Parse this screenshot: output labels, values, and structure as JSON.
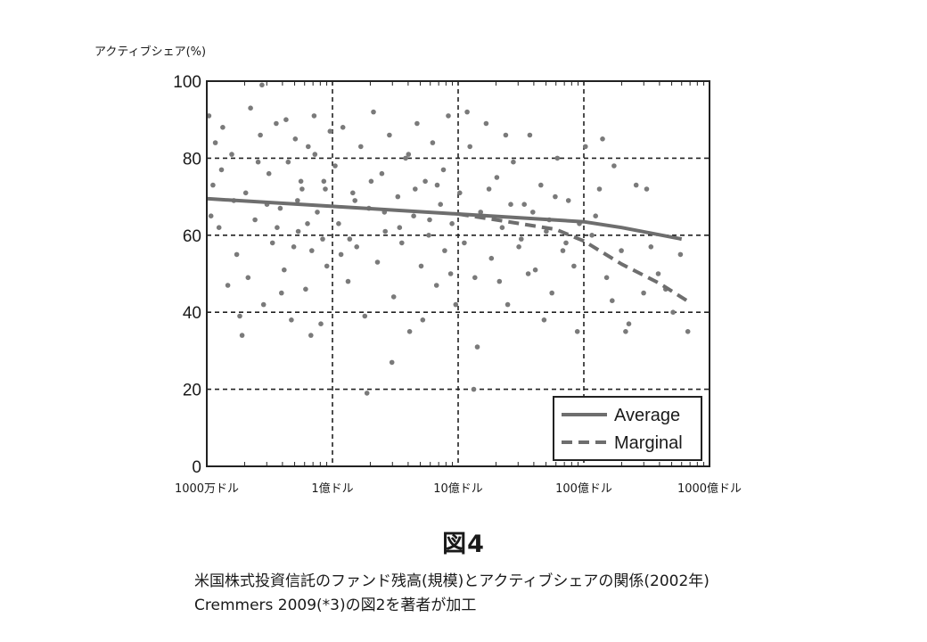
{
  "chart_data": {
    "type": "scatter",
    "ylabel": "アクティブシェア(%)",
    "xlabel": "",
    "x_scale": "log",
    "x_ticks": [
      {
        "value": 10000000,
        "label": "1000万ドル"
      },
      {
        "value": 100000000,
        "label": "1億ドル"
      },
      {
        "value": 1000000000,
        "label": "10億ドル"
      },
      {
        "value": 10000000000,
        "label": "100億ドル"
      },
      {
        "value": 100000000000,
        "label": "1000億ドル"
      }
    ],
    "y_ticks": [
      "0",
      "20",
      "40",
      "60",
      "80",
      "100"
    ],
    "xlim": [
      10000000,
      100000000000
    ],
    "ylim": [
      0,
      100
    ],
    "grid": true,
    "legend_position": "bottom-right",
    "point_color": "#7a7a7a",
    "series": [
      {
        "name": "Average",
        "style": "solid",
        "color": "#6e6e6e",
        "points": [
          [
            10000000,
            69.5
          ],
          [
            100000000,
            67.5
          ],
          [
            1000000000,
            65.5
          ],
          [
            10000000000,
            63.5
          ],
          [
            20000000000,
            62
          ],
          [
            60000000000,
            59
          ]
        ]
      },
      {
        "name": "Marginal",
        "style": "dashed",
        "color": "#6e6e6e",
        "points": [
          [
            1000000000,
            65.5
          ],
          [
            2500000000,
            63.5
          ],
          [
            6000000000,
            61.5
          ],
          [
            10000000000,
            58.5
          ],
          [
            20000000000,
            52.5
          ],
          [
            40000000000,
            47.5
          ],
          [
            70000000000,
            42.5
          ]
        ]
      }
    ],
    "scatter_points": [
      [
        10400000,
        91
      ],
      [
        11200000,
        73
      ],
      [
        12500000,
        62
      ],
      [
        13400000,
        88
      ],
      [
        14700000,
        47
      ],
      [
        15800000,
        81
      ],
      [
        17300000,
        55
      ],
      [
        19100000,
        34
      ],
      [
        20400000,
        71
      ],
      [
        22300000,
        93
      ],
      [
        24200000,
        64
      ],
      [
        26700000,
        86
      ],
      [
        28300000,
        42
      ],
      [
        31200000,
        76
      ],
      [
        33300000,
        58
      ],
      [
        35700000,
        89
      ],
      [
        38400000,
        67
      ],
      [
        41300000,
        51
      ],
      [
        44400000,
        79
      ],
      [
        47100000,
        38
      ],
      [
        50600000,
        85
      ],
      [
        53400000,
        61
      ],
      [
        57300000,
        72
      ],
      [
        61200000,
        46
      ],
      [
        64100000,
        83
      ],
      [
        68500000,
        56
      ],
      [
        71400000,
        91
      ],
      [
        75800000,
        66
      ],
      [
        80900000,
        37
      ],
      [
        85300000,
        74
      ],
      [
        90200000,
        52
      ],
      [
        95700000,
        87
      ],
      [
        10800000,
        65
      ],
      [
        13100000,
        77
      ],
      [
        16400000,
        69
      ],
      [
        21300000,
        49
      ],
      [
        25600000,
        79
      ],
      [
        30100000,
        68
      ],
      [
        36300000,
        62
      ],
      [
        42700000,
        90
      ],
      [
        49200000,
        57
      ],
      [
        56100000,
        74
      ],
      [
        63300000,
        63
      ],
      [
        72500000,
        81
      ],
      [
        83600000,
        59
      ],
      [
        11700000,
        84
      ],
      [
        18300000,
        39
      ],
      [
        27500000,
        99
      ],
      [
        39300000,
        45
      ],
      [
        52700000,
        69
      ],
      [
        67300000,
        34
      ],
      [
        87700000,
        72
      ],
      [
        105000000,
        78
      ],
      [
        112000000,
        63
      ],
      [
        121000000,
        88
      ],
      [
        133000000,
        48
      ],
      [
        145000000,
        71
      ],
      [
        156000000,
        57
      ],
      [
        168000000,
        83
      ],
      [
        181000000,
        39
      ],
      [
        195000000,
        67
      ],
      [
        212000000,
        92
      ],
      [
        228000000,
        53
      ],
      [
        247000000,
        76
      ],
      [
        263000000,
        61
      ],
      [
        284000000,
        86
      ],
      [
        307000000,
        44
      ],
      [
        331000000,
        70
      ],
      [
        356000000,
        58
      ],
      [
        382000000,
        80
      ],
      [
        411000000,
        35
      ],
      [
        443000000,
        65
      ],
      [
        471000000,
        89
      ],
      [
        508000000,
        52
      ],
      [
        547000000,
        74
      ],
      [
        583000000,
        60
      ],
      [
        627000000,
        84
      ],
      [
        672000000,
        47
      ],
      [
        724000000,
        68
      ],
      [
        781000000,
        56
      ],
      [
        836000000,
        91
      ],
      [
        893000000,
        63
      ],
      [
        957000000,
        42
      ],
      [
        117000000,
        55
      ],
      [
        151000000,
        69
      ],
      [
        203000000,
        74
      ],
      [
        259000000,
        66
      ],
      [
        342000000,
        62
      ],
      [
        455000000,
        72
      ],
      [
        593000000,
        64
      ],
      [
        764000000,
        77
      ],
      [
        137000000,
        59
      ],
      [
        188000000,
        19
      ],
      [
        297000000,
        27
      ],
      [
        403000000,
        81
      ],
      [
        523000000,
        38
      ],
      [
        681000000,
        73
      ],
      [
        872000000,
        50
      ],
      [
        1030000000,
        71
      ],
      [
        1120000000,
        58
      ],
      [
        1240000000,
        83
      ],
      [
        1360000000,
        49
      ],
      [
        1510000000,
        66
      ],
      [
        1670000000,
        89
      ],
      [
        1840000000,
        54
      ],
      [
        2030000000,
        75
      ],
      [
        2240000000,
        62
      ],
      [
        2480000000,
        42
      ],
      [
        2750000000,
        79
      ],
      [
        3040000000,
        57
      ],
      [
        3360000000,
        68
      ],
      [
        3720000000,
        86
      ],
      [
        4110000000,
        51
      ],
      [
        4550000000,
        73
      ],
      [
        5030000000,
        61
      ],
      [
        5570000000,
        45
      ],
      [
        6160000000,
        80
      ],
      [
        6810000000,
        56
      ],
      [
        7540000000,
        69
      ],
      [
        8340000000,
        52
      ],
      [
        9220000000,
        63
      ],
      [
        1180000000,
        92
      ],
      [
        1420000000,
        31
      ],
      [
        1760000000,
        72
      ],
      [
        2130000000,
        48
      ],
      [
        2620000000,
        68
      ],
      [
        3180000000,
        59
      ],
      [
        3930000000,
        66
      ],
      [
        4830000000,
        38
      ],
      [
        5920000000,
        70
      ],
      [
        7210000000,
        58
      ],
      [
        8870000000,
        35
      ],
      [
        1330000000,
        20
      ],
      [
        2390000000,
        86
      ],
      [
        3610000000,
        50
      ],
      [
        5310000000,
        64
      ],
      [
        10300000000,
        83
      ],
      [
        11600000000,
        60
      ],
      [
        13300000000,
        72
      ],
      [
        15200000000,
        49
      ],
      [
        17400000000,
        78
      ],
      [
        19900000000,
        56
      ],
      [
        22800000000,
        37
      ],
      [
        26100000000,
        73
      ],
      [
        29900000000,
        45
      ],
      [
        34200000000,
        57
      ],
      [
        39100000000,
        50
      ],
      [
        44800000000,
        46
      ],
      [
        51300000000,
        40
      ],
      [
        58700000000,
        55
      ],
      [
        67200000000,
        35
      ],
      [
        14100000000,
        85
      ],
      [
        21500000000,
        35
      ],
      [
        31600000000,
        72
      ],
      [
        12400000000,
        65
      ],
      [
        16800000000,
        43
      ]
    ]
  },
  "figure_title": "図4",
  "caption_line1": "米国株式投資信託のファンド残高(規模)とアクティブシェアの関係(2002年)",
  "caption_line2": "Cremmers 2009(*3)の図2を著者が加工"
}
